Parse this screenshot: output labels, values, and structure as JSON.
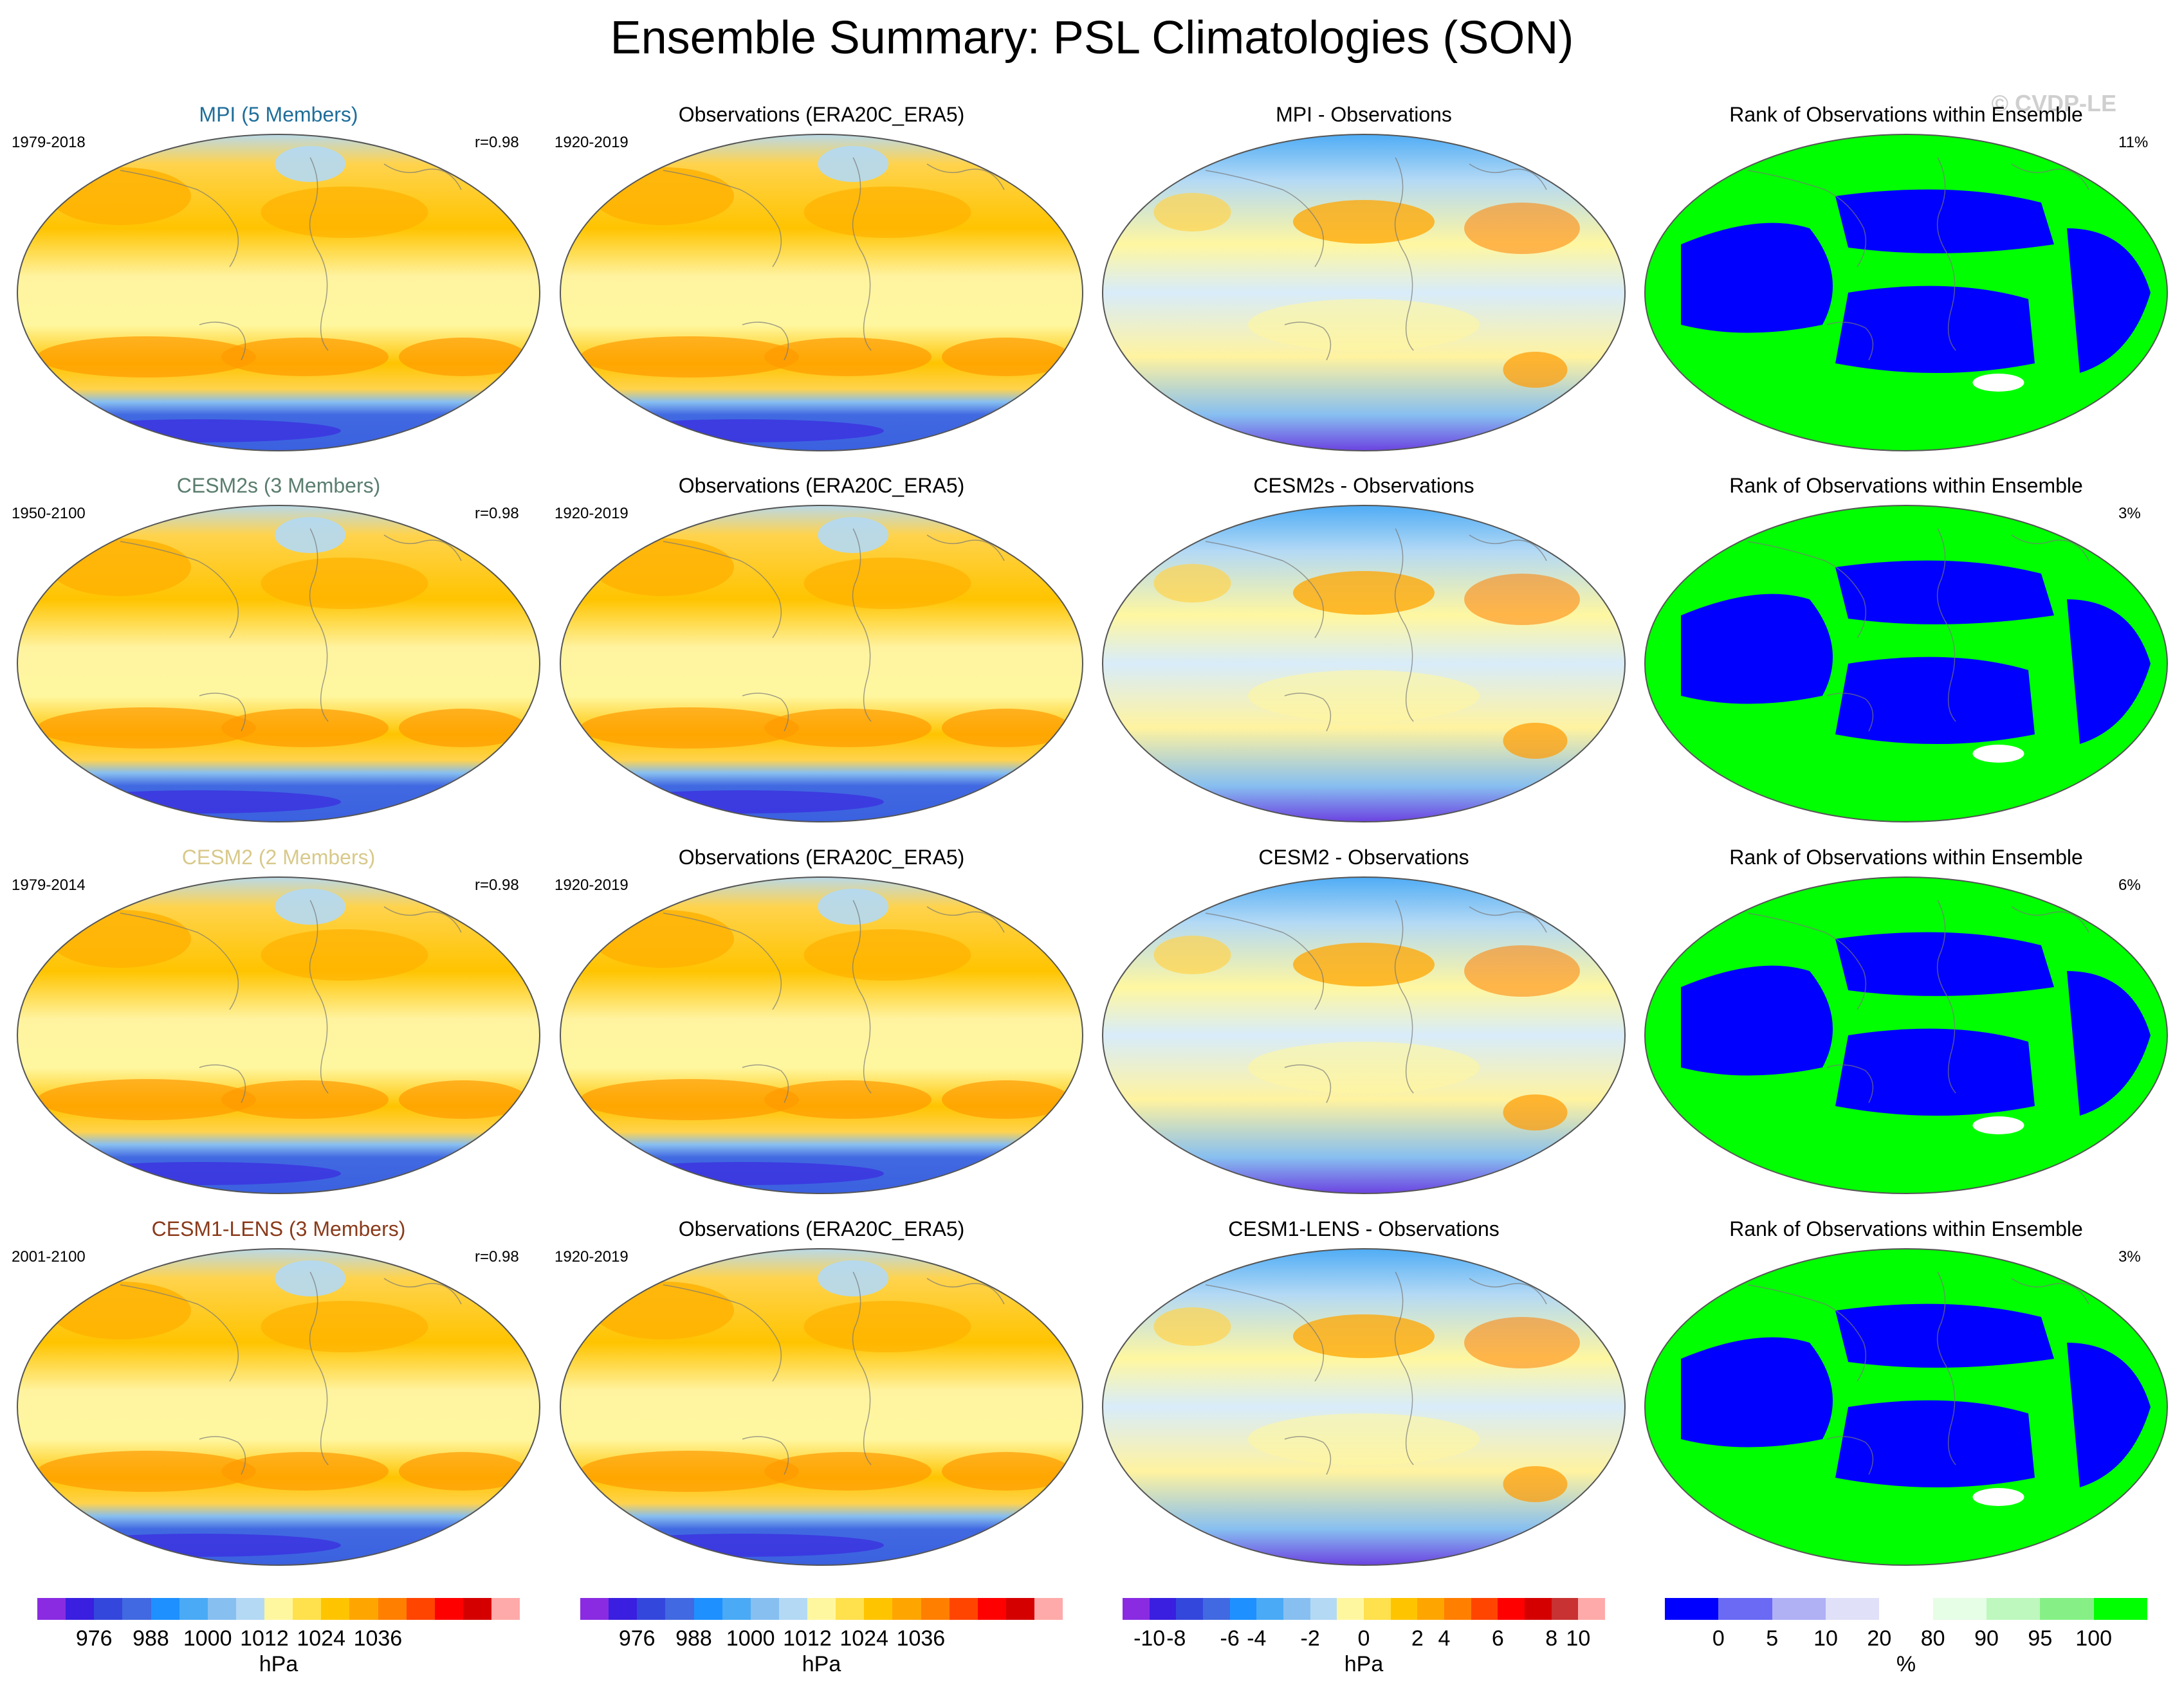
{
  "title": "Ensemble Summary: PSL Climatologies (SON)",
  "watermark": "© CVDP-LE",
  "rows": [
    {
      "model": {
        "title": "MPI (5 Members)",
        "color": "#1e6e9a",
        "years": "1979-2018",
        "r": "r=0.98"
      },
      "obs": {
        "title": "Observations (ERA20C_ERA5)",
        "years": "1920-2019"
      },
      "diff": {
        "title": "MPI - Observations"
      },
      "rank": {
        "title": "Rank of Observations within Ensemble",
        "pct": "11%"
      }
    },
    {
      "model": {
        "title": "CESM2s (3 Members)",
        "color": "#5a7d6e",
        "years": "1950-2100",
        "r": "r=0.98"
      },
      "obs": {
        "title": "Observations (ERA20C_ERA5)",
        "years": "1920-2019"
      },
      "diff": {
        "title": "CESM2s - Observations"
      },
      "rank": {
        "title": "Rank of Observations within Ensemble",
        "pct": "3%"
      }
    },
    {
      "model": {
        "title": "CESM2 (2 Members)",
        "color": "#d8c98a",
        "years": "1979-2014",
        "r": "r=0.98"
      },
      "obs": {
        "title": "Observations (ERA20C_ERA5)",
        "years": "1920-2019"
      },
      "diff": {
        "title": "CESM2 - Observations"
      },
      "rank": {
        "title": "Rank of Observations within Ensemble",
        "pct": "6%"
      }
    },
    {
      "model": {
        "title": "CESM1-LENS (3 Members)",
        "color": "#8a3a1a",
        "years": "2001-2100",
        "r": "r=0.98"
      },
      "obs": {
        "title": "Observations (ERA20C_ERA5)",
        "years": "1920-2019"
      },
      "diff": {
        "title": "CESM1-LENS - Observations"
      },
      "rank": {
        "title": "Rank of Observations within Ensemble",
        "pct": "3%"
      }
    }
  ],
  "colorbars": [
    {
      "name": "model-psl",
      "unit": "hPa",
      "ticks": [
        "976",
        "988",
        "1000",
        "1012",
        "1024",
        "1036"
      ],
      "colors": [
        "#8a2be2",
        "#3a1fe0",
        "#3347dd",
        "#4169e1",
        "#1e90ff",
        "#4aaaf5",
        "#87bff0",
        "#b3d9f5",
        "#fff7a0",
        "#ffe14d",
        "#ffc400",
        "#ffa500",
        "#ff7f00",
        "#ff4500",
        "#ff0000",
        "#d40000",
        "#ffaaaa"
      ]
    },
    {
      "name": "obs-psl",
      "unit": "hPa",
      "ticks": [
        "976",
        "988",
        "1000",
        "1012",
        "1024",
        "1036"
      ],
      "colors": [
        "#8a2be2",
        "#3a1fe0",
        "#3347dd",
        "#4169e1",
        "#1e90ff",
        "#4aaaf5",
        "#87bff0",
        "#b3d9f5",
        "#fff7a0",
        "#ffe14d",
        "#ffc400",
        "#ffa500",
        "#ff7f00",
        "#ff4500",
        "#ff0000",
        "#d40000",
        "#ffaaaa"
      ]
    },
    {
      "name": "difference",
      "unit": "hPa",
      "ticks": [
        "-10",
        "-8",
        "-6",
        "-4",
        "-2",
        "0",
        "2",
        "4",
        "6",
        "8",
        "10"
      ],
      "colors": [
        "#8a2be2",
        "#3a1fe0",
        "#3347dd",
        "#4169e1",
        "#1e90ff",
        "#4aaaf5",
        "#87bff0",
        "#b3d9f5",
        "#fff7a0",
        "#ffe14d",
        "#ffc400",
        "#ffa500",
        "#ff7f00",
        "#ff4500",
        "#ff0000",
        "#d40000",
        "#c83232",
        "#ffaaaa"
      ]
    },
    {
      "name": "rank",
      "unit": "%",
      "ticks": [
        "0",
        "5",
        "10",
        "20",
        "80",
        "90",
        "95",
        "100"
      ],
      "colors": [
        "#0000ff",
        "#6a6af5",
        "#b0b0f5",
        "#e0e0f8",
        "#ffffff",
        "#e6fde6",
        "#bef8be",
        "#86f086",
        "#00ff00"
      ]
    }
  ]
}
